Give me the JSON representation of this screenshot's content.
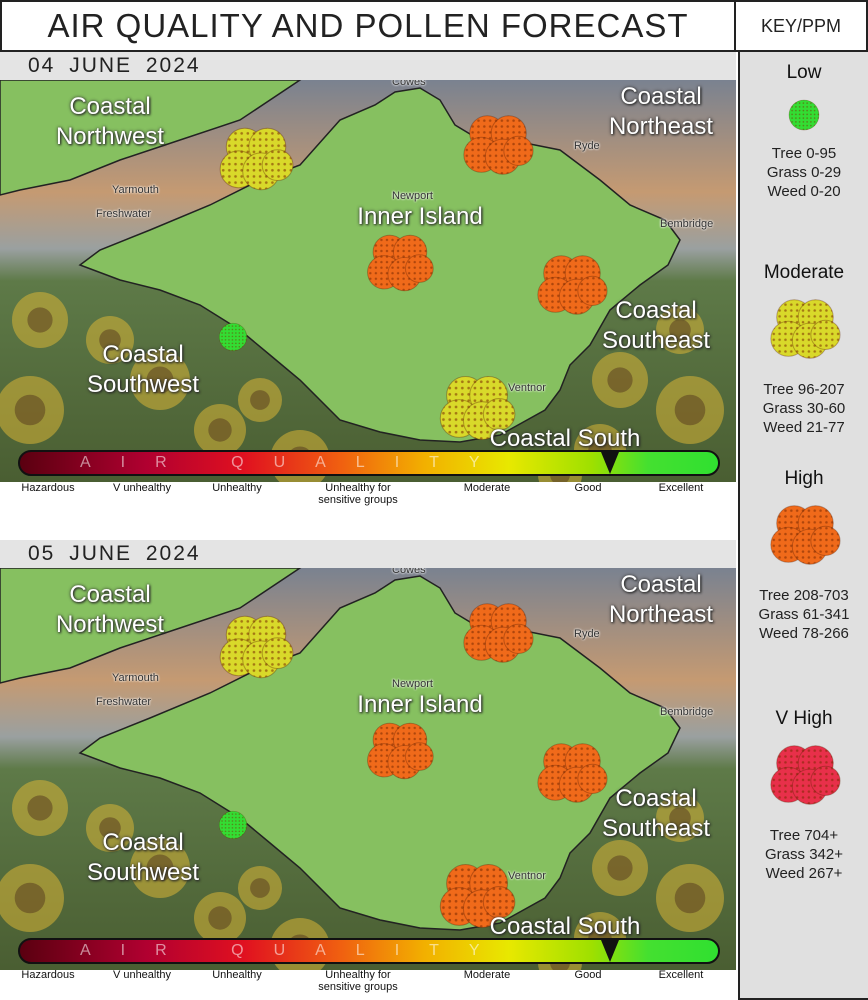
{
  "title": "AIR QUALITY AND POLLEN FORECAST",
  "key_header": "KEY/PPM",
  "colors": {
    "low": "#33dd33",
    "moderate": "#d9d92a",
    "high": "#f06a1a",
    "vhigh": "#e8304a",
    "land": "#86c060"
  },
  "towns": {
    "cowes": "Cowes",
    "ryde": "Ryde",
    "yarmouth": "Yarmouth",
    "freshwater": "Freshwater",
    "newport": "Newport",
    "bembridge": "Bembridge",
    "ventnor": "Ventnor"
  },
  "regions": {
    "nw": "Coastal\nNorthwest",
    "ne": "Coastal\nNortheast",
    "inner": "Inner Island",
    "se": "Coastal\nSoutheast",
    "sw": "Coastal\nSouthwest",
    "s": "Coastal South"
  },
  "aq_bar_text": "AIR QUALITY",
  "scale_labels": {
    "hazardous": "Hazardous",
    "v_unhealthy": "V unhealthy",
    "unhealthy": "Unhealthy",
    "sensitive": "Unhealthy for\nsensitive groups",
    "moderate": "Moderate",
    "good": "Good",
    "excellent": "Excellent"
  },
  "days": [
    {
      "date": "04  JUNE  2024",
      "air_quality": "Good",
      "pollen": {
        "nw": "moderate",
        "ne": "high",
        "inner": "high",
        "se": "high",
        "sw": "low",
        "s": "moderate"
      }
    },
    {
      "date": "05  JUNE  2024",
      "air_quality": "Good",
      "pollen": {
        "nw": "moderate",
        "ne": "high",
        "inner": "high",
        "se": "high",
        "sw": "low",
        "s": "high"
      }
    }
  ],
  "key": [
    {
      "level": "Low",
      "icon": "pollen-low-icon",
      "tree": "Tree 0-95",
      "grass": "Grass 0-29",
      "weed": "Weed 0-20"
    },
    {
      "level": "Moderate",
      "icon": "pollen-moderate-icon",
      "tree": "Tree 96-207",
      "grass": "Grass 30-60",
      "weed": "Weed 21-77"
    },
    {
      "level": "High",
      "icon": "pollen-high-icon",
      "tree": "Tree 208-703",
      "grass": "Grass 61-341",
      "weed": "Weed 78-266"
    },
    {
      "level": "V High",
      "icon": "pollen-vhigh-icon",
      "tree": "Tree 704+",
      "grass": "Grass 342+",
      "weed": "Weed 267+"
    }
  ]
}
